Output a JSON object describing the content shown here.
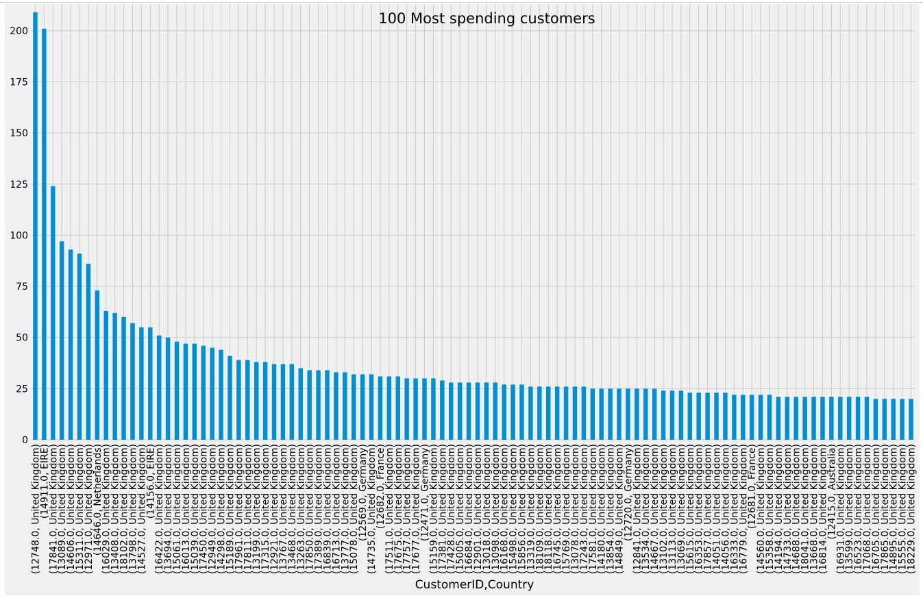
{
  "chart_data": {
    "type": "bar",
    "title": "100 Most spending customers",
    "xlabel": "CustomerID,Country",
    "ylabel": "",
    "ylim": [
      0,
      213
    ],
    "yticks": [
      0,
      25,
      50,
      75,
      100,
      125,
      150,
      175,
      200
    ],
    "grid": true,
    "color": "#008fd5",
    "background": "#f0f0f0",
    "categories": [
      "(12748.0, United Kingdom)",
      "(14911.0, EIRE)",
      "(17841.0, United Kingdom)",
      "(13089.0, United Kingdom)",
      "(14606.0, United Kingdom)",
      "(15311.0, United Kingdom)",
      "(12971.0, United Kingdom)",
      "(14646.0, Netherlands)",
      "(16029.0, United Kingdom)",
      "(13408.0, United Kingdom)",
      "(18102.0, United Kingdom)",
      "(13798.0, United Kingdom)",
      "(14527.0, United Kingdom)",
      "(14156.0, EIRE)",
      "(16422.0, United Kingdom)",
      "(13694.0, United Kingdom)",
      "(15061.0, United Kingdom)",
      "(16013.0, United Kingdom)",
      "(15039.0, United Kingdom)",
      "(17450.0, United Kingdom)",
      "(12949.0, United Kingdom)",
      "(14298.0, United Kingdom)",
      "(15189.0, United Kingdom)",
      "(17961.0, United Kingdom)",
      "(17811.0, United Kingdom)",
      "(13199.0, United Kingdom)",
      "(17315.0, United Kingdom)",
      "(12921.0, United Kingdom)",
      "(13767.0, United Kingdom)",
      "(13468.0, United Kingdom)",
      "(13263.0, United Kingdom)",
      "(17850.0, United Kingdom)",
      "(17389.0, United Kingdom)",
      "(16839.0, United Kingdom)",
      "(16713.0, United Kingdom)",
      "(13777.0, United Kingdom)",
      "(15078.0, United Kingdom)",
      "(12569.0, Germany)",
      "(14735.0, United Kingdom)",
      "(12682.0, France)",
      "(17511.0, United Kingdom)",
      "(17675.0, United Kingdom)",
      "(17757.0, United Kingdom)",
      "(17677.0, United Kingdom)",
      "(12471.0, Germany)",
      "(15159.0, United Kingdom)",
      "(17381.0, United Kingdom)",
      "(17428.0, United Kingdom)",
      "(15005.0, United Kingdom)",
      "(16684.0, United Kingdom)",
      "(12901.0, United Kingdom)",
      "(13018.0, United Kingdom)",
      "(13098.0, United Kingdom)",
      "(16168.0, United Kingdom)",
      "(15498.0, United Kingdom)",
      "(15856.0, United Kingdom)",
      "(13319.0, United Kingdom)",
      "(18109.0, United Kingdom)",
      "(18118.0, United Kingdom)",
      "(16745.0, United Kingdom)",
      "(15769.0, United Kingdom)",
      "(13078.0, United Kingdom)",
      "(17243.0, United Kingdom)",
      "(17581.0, United Kingdom)",
      "(14180.0, United Kingdom)",
      "(13854.0, United Kingdom)",
      "(14849.0, United Kingdom)",
      "(12720.0, Germany)",
      "(12841.0, United Kingdom)",
      "(13534.0, United Kingdom)",
      "(14667.0, United Kingdom)",
      "(13102.0, United Kingdom)",
      "(13113.0, United Kingdom)",
      "(13069.0, United Kingdom)",
      "(15615.0, United Kingdom)",
      "(16353.0, United Kingdom)",
      "(17857.0, United Kingdom)",
      "(14051.0, United Kingdom)",
      "(14056.0, United Kingdom)",
      "(16333.0, United Kingdom)",
      "(16779.0, United Kingdom)",
      "(12681.0, France)",
      "(14560.0, United Kingdom)",
      "(15358.0, United Kingdom)",
      "(14194.0, United Kingdom)",
      "(14733.0, United Kingdom)",
      "(14688.0, United Kingdom)",
      "(18041.0, United Kingdom)",
      "(13668.0, United Kingdom)",
      "(16814.0, United Kingdom)",
      "(12415.0, Australia)",
      "(16931.0, United Kingdom)",
      "(13599.0, United Kingdom)",
      "(16523.0, United Kingdom)",
      "(17068.0, United Kingdom)",
      "(16705.0, United Kingdom)",
      "(17865.0, United Kingdom)",
      "(14895.0, United Kingdom)",
      "(15555.0, United Kingdom)",
      "(18229.0, United Kingdom)"
    ],
    "values": [
      209,
      201,
      124,
      97,
      93,
      91,
      86,
      73,
      63,
      62,
      60,
      57,
      55,
      55,
      51,
      50,
      48,
      47,
      47,
      46,
      45,
      44,
      41,
      39,
      39,
      38,
      38,
      37,
      37,
      37,
      35,
      34,
      34,
      34,
      33,
      33,
      32,
      32,
      32,
      31,
      31,
      31,
      30,
      30,
      30,
      30,
      29,
      28,
      28,
      28,
      28,
      28,
      28,
      27,
      27,
      27,
      26,
      26,
      26,
      26,
      26,
      26,
      26,
      25,
      25,
      25,
      25,
      25,
      25,
      25,
      25,
      24,
      24,
      24,
      23,
      23,
      23,
      23,
      23,
      22,
      22,
      22,
      22,
      22,
      21,
      21,
      21,
      21,
      21,
      21,
      21,
      21,
      21,
      21,
      21,
      20,
      20,
      20,
      20,
      20
    ]
  }
}
